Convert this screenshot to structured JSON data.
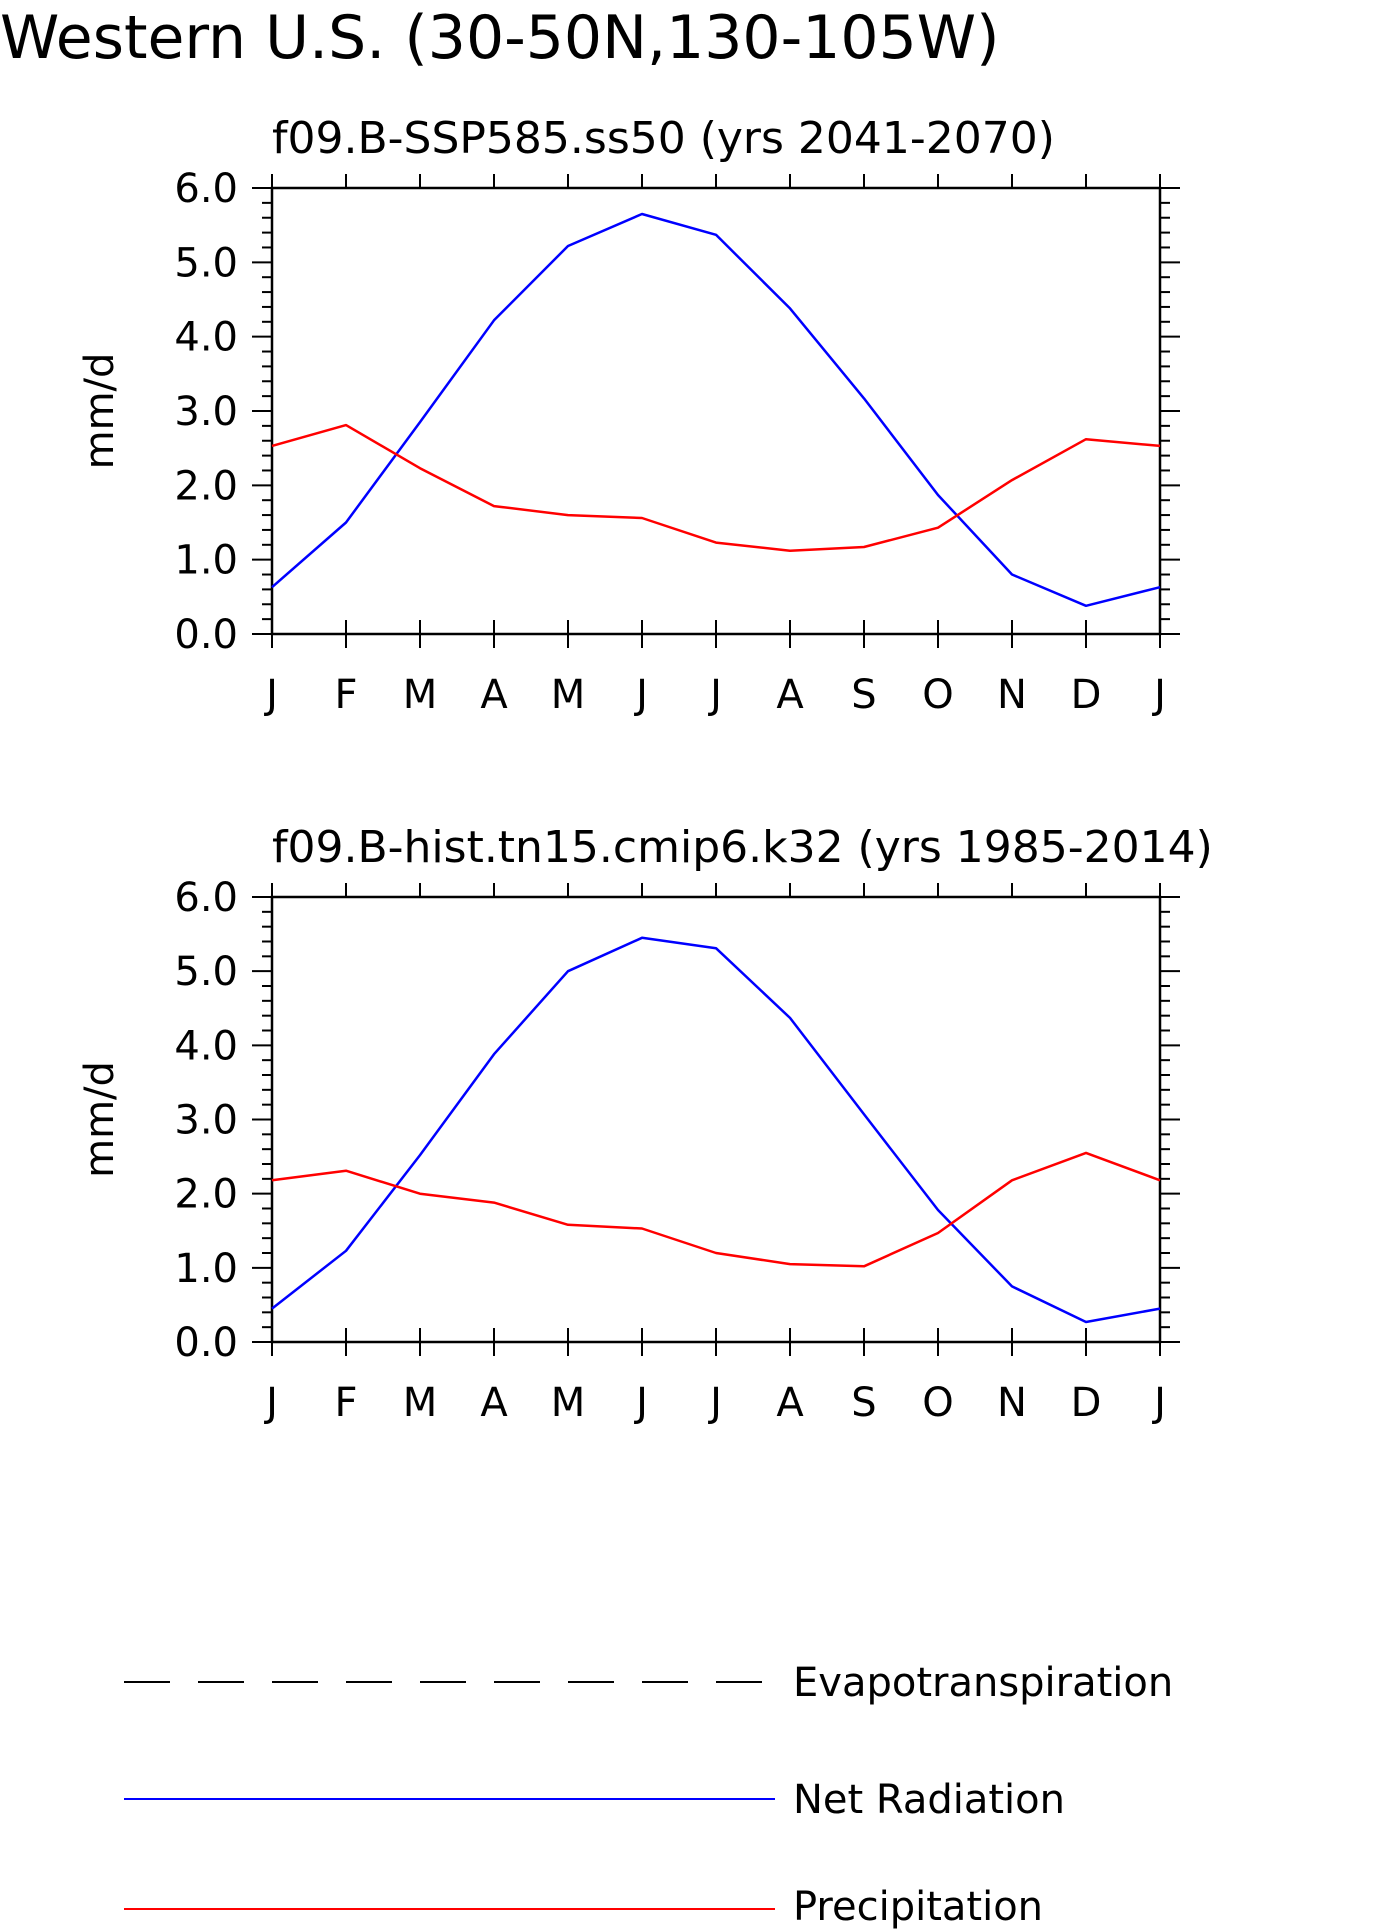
{
  "title": "Western U.S. (30-50N,130-105W)",
  "legend": {
    "items": [
      {
        "name": "Evapotranspiration",
        "color": "#000000",
        "style": "dashed"
      },
      {
        "name": "Net Radiation",
        "color": "#0000ff",
        "style": "solid"
      },
      {
        "name": "Precipitation",
        "color": "#ff0000",
        "style": "solid"
      }
    ]
  },
  "chart_data": [
    {
      "type": "line",
      "title": "f09.B-SSP585.ss50 (yrs 2041-2070)",
      "ylabel": "mm/d",
      "xlabel": "",
      "ylim": [
        0,
        6
      ],
      "yticks": [
        "0.0",
        "1.0",
        "2.0",
        "3.0",
        "4.0",
        "5.0",
        "6.0"
      ],
      "categories": [
        "J",
        "F",
        "M",
        "A",
        "M",
        "J",
        "J",
        "A",
        "S",
        "O",
        "N",
        "D",
        "J"
      ],
      "series": [
        {
          "name": "Net Radiation",
          "color": "#0000ff",
          "values": [
            0.63,
            1.5,
            2.85,
            4.22,
            5.22,
            5.65,
            5.37,
            4.38,
            3.17,
            1.87,
            0.8,
            0.38,
            0.63
          ]
        },
        {
          "name": "Precipitation",
          "color": "#ff0000",
          "values": [
            2.53,
            2.81,
            2.23,
            1.72,
            1.6,
            1.56,
            1.23,
            1.12,
            1.17,
            1.43,
            2.07,
            2.62,
            2.53
          ]
        }
      ]
    },
    {
      "type": "line",
      "title": "f09.B-hist.tn15.cmip6.k32 (yrs 1985-2014)",
      "ylabel": "mm/d",
      "xlabel": "",
      "ylim": [
        0,
        6
      ],
      "yticks": [
        "0.0",
        "1.0",
        "2.0",
        "3.0",
        "4.0",
        "5.0",
        "6.0"
      ],
      "categories": [
        "J",
        "F",
        "M",
        "A",
        "M",
        "J",
        "J",
        "A",
        "S",
        "O",
        "N",
        "D",
        "J"
      ],
      "series": [
        {
          "name": "Net Radiation",
          "color": "#0000ff",
          "values": [
            0.45,
            1.23,
            2.52,
            3.88,
            5.0,
            5.45,
            5.31,
            4.37,
            3.07,
            1.78,
            0.75,
            0.27,
            0.45
          ]
        },
        {
          "name": "Precipitation",
          "color": "#ff0000",
          "values": [
            2.18,
            2.31,
            2.0,
            1.88,
            1.58,
            1.53,
            1.2,
            1.05,
            1.02,
            1.47,
            2.18,
            2.55,
            2.18
          ]
        }
      ]
    }
  ]
}
